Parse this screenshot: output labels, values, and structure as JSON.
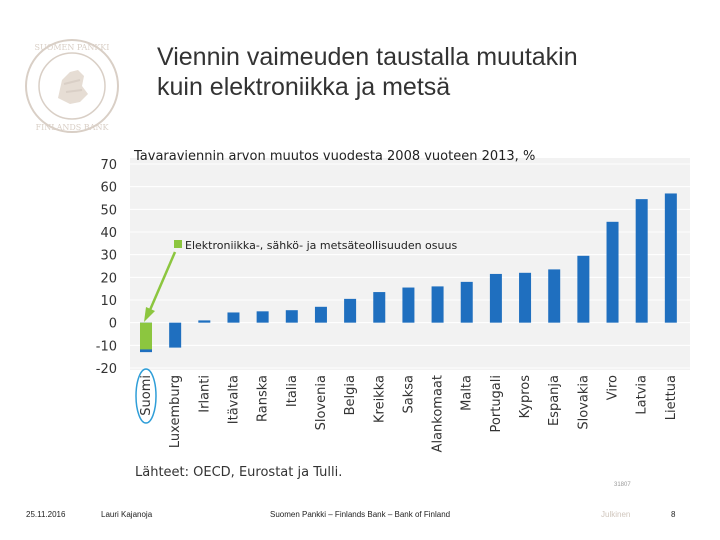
{
  "slide": {
    "title_line1": "Viennin vaimeuden taustalla muutakin",
    "title_line2": "kuin elektroniikka ja metsä",
    "source": "Lähteet: OECD, Eurostat ja Tulli.",
    "code": "31807"
  },
  "footer": {
    "date": "25.11.2016",
    "author": "Lauri Kajanoja",
    "org": "Suomen Pankki – Finlands Bank – Bank of Finland",
    "classification": "Julkinen",
    "page": "8"
  },
  "colors": {
    "bar": "#1f6fbf",
    "highlight": "#8cc63f",
    "circle": "#2f9ed8",
    "arrow": "#8cc63f",
    "logo": "#d9cfc6"
  },
  "chart_data": {
    "type": "bar",
    "title": "Tavaraviennin arvon muutos vuodesta 2008 vuoteen 2013, %",
    "xlabel": "",
    "ylabel": "",
    "ylim": [
      -20,
      70
    ],
    "yticks": [
      "70",
      "60",
      "50",
      "40",
      "30",
      "20",
      "10",
      "0",
      "-10",
      "-20"
    ],
    "grid": true,
    "categories": [
      "Suomi",
      "Luxemburg",
      "Irlanti",
      "Itävalta",
      "Ranska",
      "Italia",
      "Slovenia",
      "Belgia",
      "Kreikka",
      "Saksa",
      "Alankomaat",
      "Malta",
      "Portugali",
      "Kypros",
      "Espanja",
      "Slovakia",
      "Viro",
      "Latvia",
      "Liettua"
    ],
    "series": [
      {
        "values": [
          -13,
          -11,
          1,
          4.5,
          5,
          5.5,
          7,
          10.5,
          13.5,
          15.5,
          16,
          18,
          21.5,
          22,
          23.5,
          29.5,
          44.5,
          54.5,
          57
        ]
      }
    ],
    "highlight_series": {
      "name": "Elektroniikka-, sähkö- ja metsäteollisuuden osuus",
      "values": [
        -11.8,
        null,
        null,
        null,
        null,
        null,
        null,
        null,
        null,
        null,
        null,
        null,
        null,
        null,
        null,
        null,
        null,
        null,
        null
      ]
    },
    "annotation": "Elektroniikka-, sähkö- ja metsäteollisuuden osuus",
    "highlighted_category": "Suomi"
  }
}
